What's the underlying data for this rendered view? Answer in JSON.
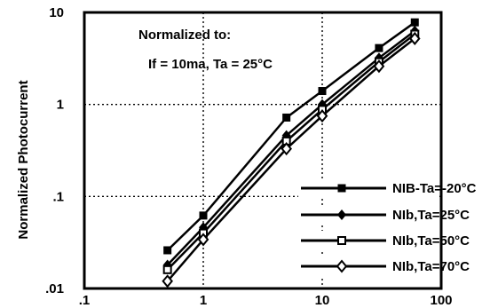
{
  "chart_data": {
    "type": "line",
    "x_scale": "log",
    "y_scale": "log",
    "xlim": [
      0.1,
      100
    ],
    "ylim": [
      0.01,
      10
    ],
    "x_ticks": [
      ".1",
      "1",
      "10",
      "100"
    ],
    "y_ticks": [
      ".01",
      ".1",
      "1",
      "10"
    ],
    "ylabel": "Normalized  Photocurrent",
    "xlabel": "",
    "grid": "dotted at decades",
    "annotations": [
      "Normalized to:",
      "If = 10ma, Ta = 25°C"
    ],
    "legend_position": "bottom-right",
    "series": [
      {
        "name": "NIB-Ta=-20°C",
        "marker": "filled-square",
        "x": [
          0.5,
          1,
          5,
          10,
          30,
          60
        ],
        "y": [
          0.026,
          0.062,
          0.72,
          1.4,
          4.1,
          7.8
        ]
      },
      {
        "name": "NIb,Ta=25°C",
        "marker": "filled-diamond",
        "x": [
          0.5,
          1,
          5,
          10,
          30,
          60
        ],
        "y": [
          0.018,
          0.046,
          0.46,
          1.0,
          3.2,
          6.3
        ]
      },
      {
        "name": "NIb,Ta=50°C",
        "marker": "hollow-square",
        "x": [
          0.5,
          1,
          5,
          10,
          30,
          60
        ],
        "y": [
          0.016,
          0.04,
          0.4,
          0.88,
          2.9,
          5.8
        ]
      },
      {
        "name": "NIb,Ta=70°C",
        "marker": "hollow-diamond",
        "x": [
          0.5,
          1,
          5,
          10,
          30,
          60
        ],
        "y": [
          0.012,
          0.034,
          0.33,
          0.75,
          2.6,
          5.2
        ]
      }
    ]
  }
}
